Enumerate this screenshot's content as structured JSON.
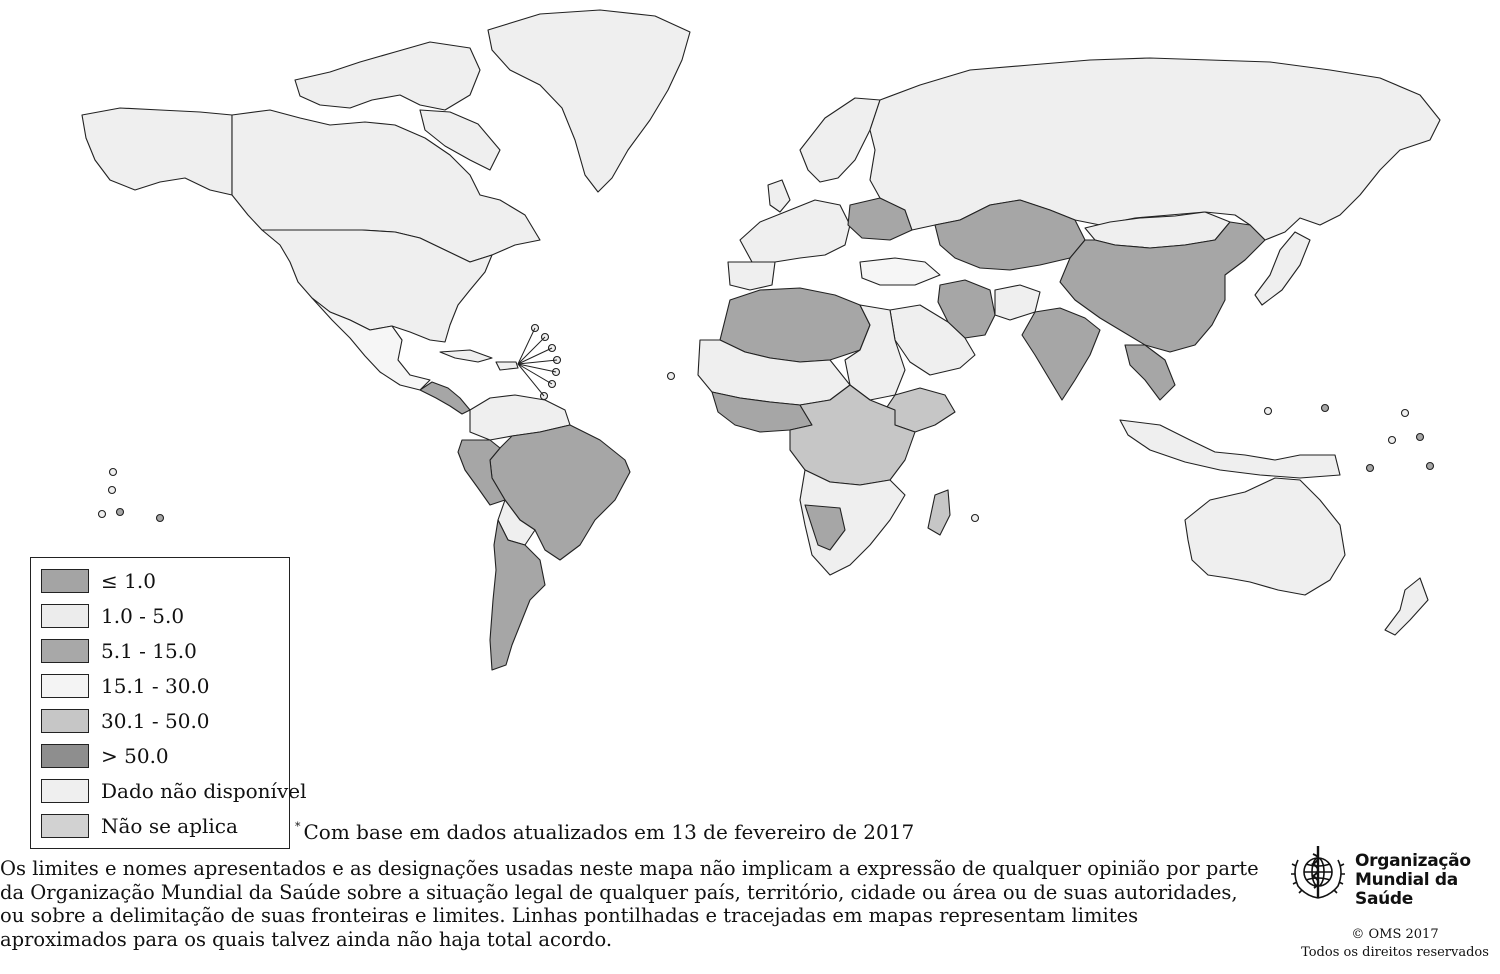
{
  "legend": {
    "items": [
      {
        "label": "≤ 1.0",
        "color": "#a4a4a4"
      },
      {
        "label": "1.0 - 5.0",
        "color": "#ececec"
      },
      {
        "label": "5.1 - 15.0",
        "color": "#a8a8a8"
      },
      {
        "label": "15.1 - 30.0",
        "color": "#f4f4f4"
      },
      {
        "label": "30.1 - 50.0",
        "color": "#c6c6c6"
      },
      {
        "label": "> 50.0",
        "color": "#8e8e8e"
      },
      {
        "label": "Dado não disponível",
        "color": "#efefef"
      },
      {
        "label": "Não se aplica",
        "color": "#d2d2d2"
      }
    ]
  },
  "footnote": {
    "marker": "*",
    "text": "Com base em dados atualizados em 13 de fevereiro de 2017"
  },
  "disclaimer": "Os limites e nomes apresentados e as designações usadas neste mapa não implicam a expressão de qualquer opinião por parte da Organização Mundial da Saúde sobre a situação legal de qualquer país, território, cidade ou área ou de suas autoridades, ou sobre a delimitação de suas fronteiras e limites. Linhas pontilhadas e tracejadas em mapas representam limites aproximados para os quais talvez ainda não haja total acordo.",
  "organization": {
    "name_line1": "Organização",
    "name_line2": "Mundial da Saúde",
    "logo_icon": "who-emblem-icon"
  },
  "copyright": {
    "line1": "© OMS 2017",
    "line2": "Todos os direitos  reservados"
  },
  "map": {
    "colors": {
      "light": "#efefef",
      "pale": "#f6f6f6",
      "mid": "#c6c6c6",
      "dark": "#a6a6a6",
      "darker": "#8e8e8e",
      "stroke": "#222222"
    }
  }
}
